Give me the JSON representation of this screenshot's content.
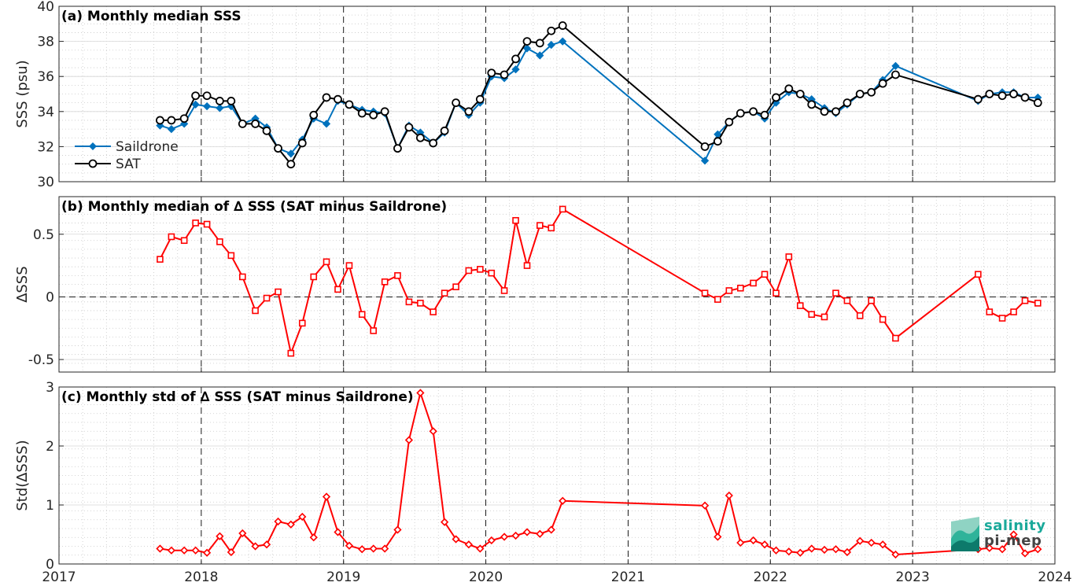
{
  "chart_data": [
    {
      "type": "line",
      "title": "(a) Monthly median SSS",
      "ylabel": "SSS (psu)",
      "xlabel": "",
      "xlim": [
        2017,
        2024
      ],
      "ylim": [
        30,
        40
      ],
      "yticks": [
        30,
        32,
        34,
        36,
        38,
        40
      ],
      "ytick_labels": [
        "30",
        "32",
        "34",
        "36",
        "38",
        "40"
      ],
      "grid": "dotted minor grid, dashed vertical lines at year boundaries",
      "legend": {
        "position": "lower-left",
        "entries": [
          "Saildrone",
          "SAT"
        ]
      },
      "series": [
        {
          "name": "Saildrone",
          "color": "#0072bd",
          "marker": "diamond",
          "x": [
            2017.71,
            2017.79,
            2017.88,
            2017.96,
            2018.04,
            2018.13,
            2018.21,
            2018.29,
            2018.38,
            2018.46,
            2018.54,
            2018.63,
            2018.71,
            2018.79,
            2018.88,
            2018.96,
            2019.04,
            2019.13,
            2019.21,
            2019.29,
            2019.38,
            2019.46,
            2019.54,
            2019.63,
            2019.71,
            2019.79,
            2019.88,
            2019.96,
            2020.04,
            2020.13,
            2020.21,
            2020.29,
            2020.38,
            2020.46,
            2020.54,
            2021.54,
            2021.63,
            2021.71,
            2021.79,
            2021.88,
            2021.96,
            2022.04,
            2022.13,
            2022.21,
            2022.29,
            2022.38,
            2022.46,
            2022.54,
            2022.63,
            2022.71,
            2022.79,
            2022.88,
            2023.46,
            2023.54,
            2023.63,
            2023.71,
            2023.79,
            2023.88
          ],
          "y": [
            33.2,
            33.0,
            33.3,
            34.4,
            34.3,
            34.2,
            34.3,
            33.3,
            33.6,
            33.1,
            31.9,
            31.6,
            32.4,
            33.6,
            33.3,
            34.6,
            34.4,
            34.1,
            34.0,
            33.9,
            31.9,
            33.2,
            32.8,
            32.2,
            32.8,
            34.5,
            33.8,
            34.5,
            36.0,
            35.9,
            36.4,
            37.6,
            37.2,
            37.8,
            38.0,
            31.2,
            32.7,
            33.4,
            33.9,
            34.0,
            33.6,
            34.5,
            35.1,
            35.0,
            34.7,
            34.2,
            33.9,
            34.4,
            35.0,
            35.1,
            35.8,
            36.6,
            34.6,
            35.0,
            35.1,
            35.1,
            34.8,
            34.8
          ]
        },
        {
          "name": "SAT",
          "color": "#000000",
          "marker": "circle",
          "x": [
            2017.71,
            2017.79,
            2017.88,
            2017.96,
            2018.04,
            2018.13,
            2018.21,
            2018.29,
            2018.38,
            2018.46,
            2018.54,
            2018.63,
            2018.71,
            2018.79,
            2018.88,
            2018.96,
            2019.04,
            2019.13,
            2019.21,
            2019.29,
            2019.38,
            2019.46,
            2019.54,
            2019.63,
            2019.71,
            2019.79,
            2019.88,
            2019.96,
            2020.04,
            2020.13,
            2020.21,
            2020.29,
            2020.38,
            2020.46,
            2020.54,
            2021.54,
            2021.63,
            2021.71,
            2021.79,
            2021.88,
            2021.96,
            2022.04,
            2022.13,
            2022.21,
            2022.29,
            2022.38,
            2022.46,
            2022.54,
            2022.63,
            2022.71,
            2022.79,
            2022.88,
            2023.46,
            2023.54,
            2023.63,
            2023.71,
            2023.79,
            2023.88
          ],
          "y": [
            33.5,
            33.5,
            33.6,
            34.9,
            34.9,
            34.6,
            34.6,
            33.3,
            33.3,
            32.9,
            31.9,
            31.0,
            32.2,
            33.8,
            34.8,
            34.7,
            34.4,
            33.9,
            33.8,
            34.0,
            31.9,
            33.1,
            32.5,
            32.2,
            32.9,
            34.5,
            34.0,
            34.7,
            36.2,
            36.1,
            37.0,
            38.0,
            37.9,
            38.6,
            38.9,
            32.0,
            32.3,
            33.4,
            33.9,
            34.0,
            33.8,
            34.8,
            35.3,
            35.0,
            34.4,
            34.0,
            34.0,
            34.5,
            35.0,
            35.1,
            35.6,
            36.1,
            34.7,
            35.0,
            34.9,
            35.0,
            34.8,
            34.5
          ]
        }
      ]
    },
    {
      "type": "line",
      "title": "(b) Monthly median of ∆ SSS (SAT minus Saildrone)",
      "ylabel": "∆SSS",
      "xlabel": "",
      "xlim": [
        2017,
        2024
      ],
      "ylim": [
        -0.6,
        0.8
      ],
      "yticks": [
        -0.5,
        0,
        0.5
      ],
      "ytick_labels": [
        "-0.5",
        "0",
        "0.5"
      ],
      "zero_line": "dashed black at 0",
      "series": [
        {
          "color": "#ff0000",
          "marker": "square",
          "x": [
            2017.71,
            2017.79,
            2017.88,
            2017.96,
            2018.04,
            2018.13,
            2018.21,
            2018.29,
            2018.38,
            2018.46,
            2018.54,
            2018.63,
            2018.71,
            2018.79,
            2018.88,
            2018.96,
            2019.04,
            2019.13,
            2019.21,
            2019.29,
            2019.38,
            2019.46,
            2019.54,
            2019.63,
            2019.71,
            2019.79,
            2019.88,
            2019.96,
            2020.04,
            2020.13,
            2020.21,
            2020.29,
            2020.38,
            2020.46,
            2020.54,
            2021.54,
            2021.63,
            2021.71,
            2021.79,
            2021.88,
            2021.96,
            2022.04,
            2022.13,
            2022.21,
            2022.29,
            2022.38,
            2022.46,
            2022.54,
            2022.63,
            2022.71,
            2022.79,
            2022.88,
            2023.46,
            2023.54,
            2023.63,
            2023.71,
            2023.79,
            2023.88
          ],
          "y": [
            0.3,
            0.48,
            0.45,
            0.59,
            0.58,
            0.44,
            0.33,
            0.16,
            -0.11,
            -0.01,
            0.04,
            -0.45,
            -0.21,
            0.16,
            0.28,
            0.06,
            0.25,
            -0.14,
            -0.27,
            0.12,
            0.17,
            -0.04,
            -0.05,
            -0.12,
            0.03,
            0.08,
            0.21,
            0.22,
            0.19,
            0.05,
            0.61,
            0.25,
            0.57,
            0.55,
            0.7,
            0.03,
            -0.02,
            0.05,
            0.07,
            0.11,
            0.18,
            0.03,
            0.32,
            -0.07,
            -0.14,
            -0.16,
            0.03,
            -0.03,
            -0.15,
            -0.03,
            -0.18,
            -0.33,
            0.18,
            -0.12,
            -0.17,
            -0.12,
            -0.03,
            -0.05
          ]
        }
      ]
    },
    {
      "type": "line",
      "title": "(c) Monthly std of ∆ SSS (SAT minus Saildrone)",
      "ylabel": "Std(∆SSS)",
      "xlabel": "",
      "xlim": [
        2017,
        2024
      ],
      "ylim": [
        0,
        3
      ],
      "yticks": [
        0,
        1,
        2,
        3
      ],
      "ytick_labels": [
        "0",
        "1",
        "2",
        "3"
      ],
      "xticks": [
        2017,
        2018,
        2019,
        2020,
        2021,
        2022,
        2023,
        2024
      ],
      "xtick_labels": [
        "2017",
        "2018",
        "2019",
        "2020",
        "2021",
        "2022",
        "2023",
        "2024"
      ],
      "series": [
        {
          "color": "#ff0000",
          "marker": "diamond",
          "x": [
            2017.71,
            2017.79,
            2017.88,
            2017.96,
            2018.04,
            2018.13,
            2018.21,
            2018.29,
            2018.38,
            2018.46,
            2018.54,
            2018.63,
            2018.71,
            2018.79,
            2018.88,
            2018.96,
            2019.04,
            2019.13,
            2019.21,
            2019.29,
            2019.38,
            2019.46,
            2019.54,
            2019.63,
            2019.71,
            2019.79,
            2019.88,
            2019.96,
            2020.04,
            2020.13,
            2020.21,
            2020.29,
            2020.38,
            2020.46,
            2020.54,
            2021.54,
            2021.63,
            2021.71,
            2021.79,
            2021.88,
            2021.96,
            2022.04,
            2022.13,
            2022.21,
            2022.29,
            2022.38,
            2022.46,
            2022.54,
            2022.63,
            2022.71,
            2022.79,
            2022.88,
            2023.46,
            2023.54,
            2023.63,
            2023.71,
            2023.79,
            2023.88
          ],
          "y": [
            0.26,
            0.23,
            0.23,
            0.23,
            0.19,
            0.47,
            0.2,
            0.52,
            0.3,
            0.33,
            0.72,
            0.67,
            0.8,
            0.45,
            1.14,
            0.54,
            0.31,
            0.25,
            0.26,
            0.26,
            0.58,
            2.1,
            2.9,
            2.25,
            0.71,
            0.42,
            0.33,
            0.26,
            0.4,
            0.46,
            0.48,
            0.54,
            0.51,
            0.58,
            1.07,
            0.99,
            0.46,
            1.16,
            0.36,
            0.4,
            0.33,
            0.23,
            0.21,
            0.19,
            0.26,
            0.24,
            0.25,
            0.2,
            0.39,
            0.36,
            0.33,
            0.16,
            0.25,
            0.27,
            0.25,
            0.5,
            0.18,
            0.25
          ]
        }
      ]
    }
  ],
  "logo": {
    "line1": "salinity",
    "line2": "pi-mep"
  }
}
